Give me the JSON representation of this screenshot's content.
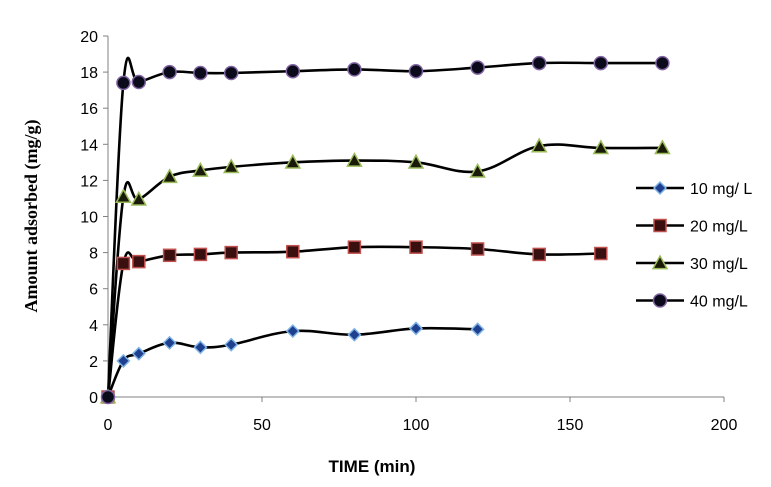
{
  "chart_data": {
    "type": "line",
    "title": "",
    "xlabel": "TIME (min)",
    "ylabel": "Amount adsorbed (mg/g)",
    "xlim": [
      0,
      200
    ],
    "ylim": [
      0,
      20
    ],
    "xticks": [
      "0",
      "50",
      "100",
      "150",
      "200"
    ],
    "yticks": [
      "0",
      "2",
      "4",
      "6",
      "8",
      "10",
      "12",
      "14",
      "16",
      "18",
      "20"
    ],
    "grid": false,
    "legend_position": "right",
    "series": [
      {
        "name": "10 mg/ L",
        "marker": "diamond",
        "fill": "#1f3f8f",
        "edge": "#7fb2e5",
        "x": [
          0,
          5,
          10,
          20,
          30,
          40,
          60,
          80,
          100,
          120
        ],
        "y": [
          0,
          2.0,
          2.4,
          3.0,
          2.75,
          2.9,
          3.65,
          3.45,
          3.8,
          3.75
        ]
      },
      {
        "name": "20 mg/L",
        "marker": "square",
        "fill": "#3a0f0f",
        "edge": "#c0504d",
        "x": [
          0,
          5,
          10,
          20,
          30,
          40,
          60,
          80,
          100,
          120,
          140,
          160
        ],
        "y": [
          0,
          7.4,
          7.5,
          7.85,
          7.9,
          8.0,
          8.05,
          8.3,
          8.3,
          8.2,
          7.9,
          7.95
        ]
      },
      {
        "name": "30 mg/L",
        "marker": "triangle",
        "fill": "#1a1a0a",
        "edge": "#9bbb59",
        "x": [
          0,
          5,
          10,
          20,
          30,
          40,
          60,
          80,
          100,
          120,
          140,
          160,
          180
        ],
        "y": [
          0,
          11.1,
          10.95,
          12.2,
          12.55,
          12.75,
          13.0,
          13.1,
          13.0,
          12.5,
          13.9,
          13.8,
          13.8
        ]
      },
      {
        "name": "40 mg/L",
        "marker": "circle",
        "fill": "#0a0a1a",
        "edge": "#8064a2",
        "x": [
          0,
          5,
          10,
          20,
          30,
          40,
          60,
          80,
          100,
          120,
          140,
          160,
          180
        ],
        "y": [
          0,
          17.4,
          17.45,
          18.0,
          17.95,
          17.95,
          18.05,
          18.15,
          18.05,
          18.25,
          18.5,
          18.5,
          18.5
        ]
      }
    ]
  }
}
